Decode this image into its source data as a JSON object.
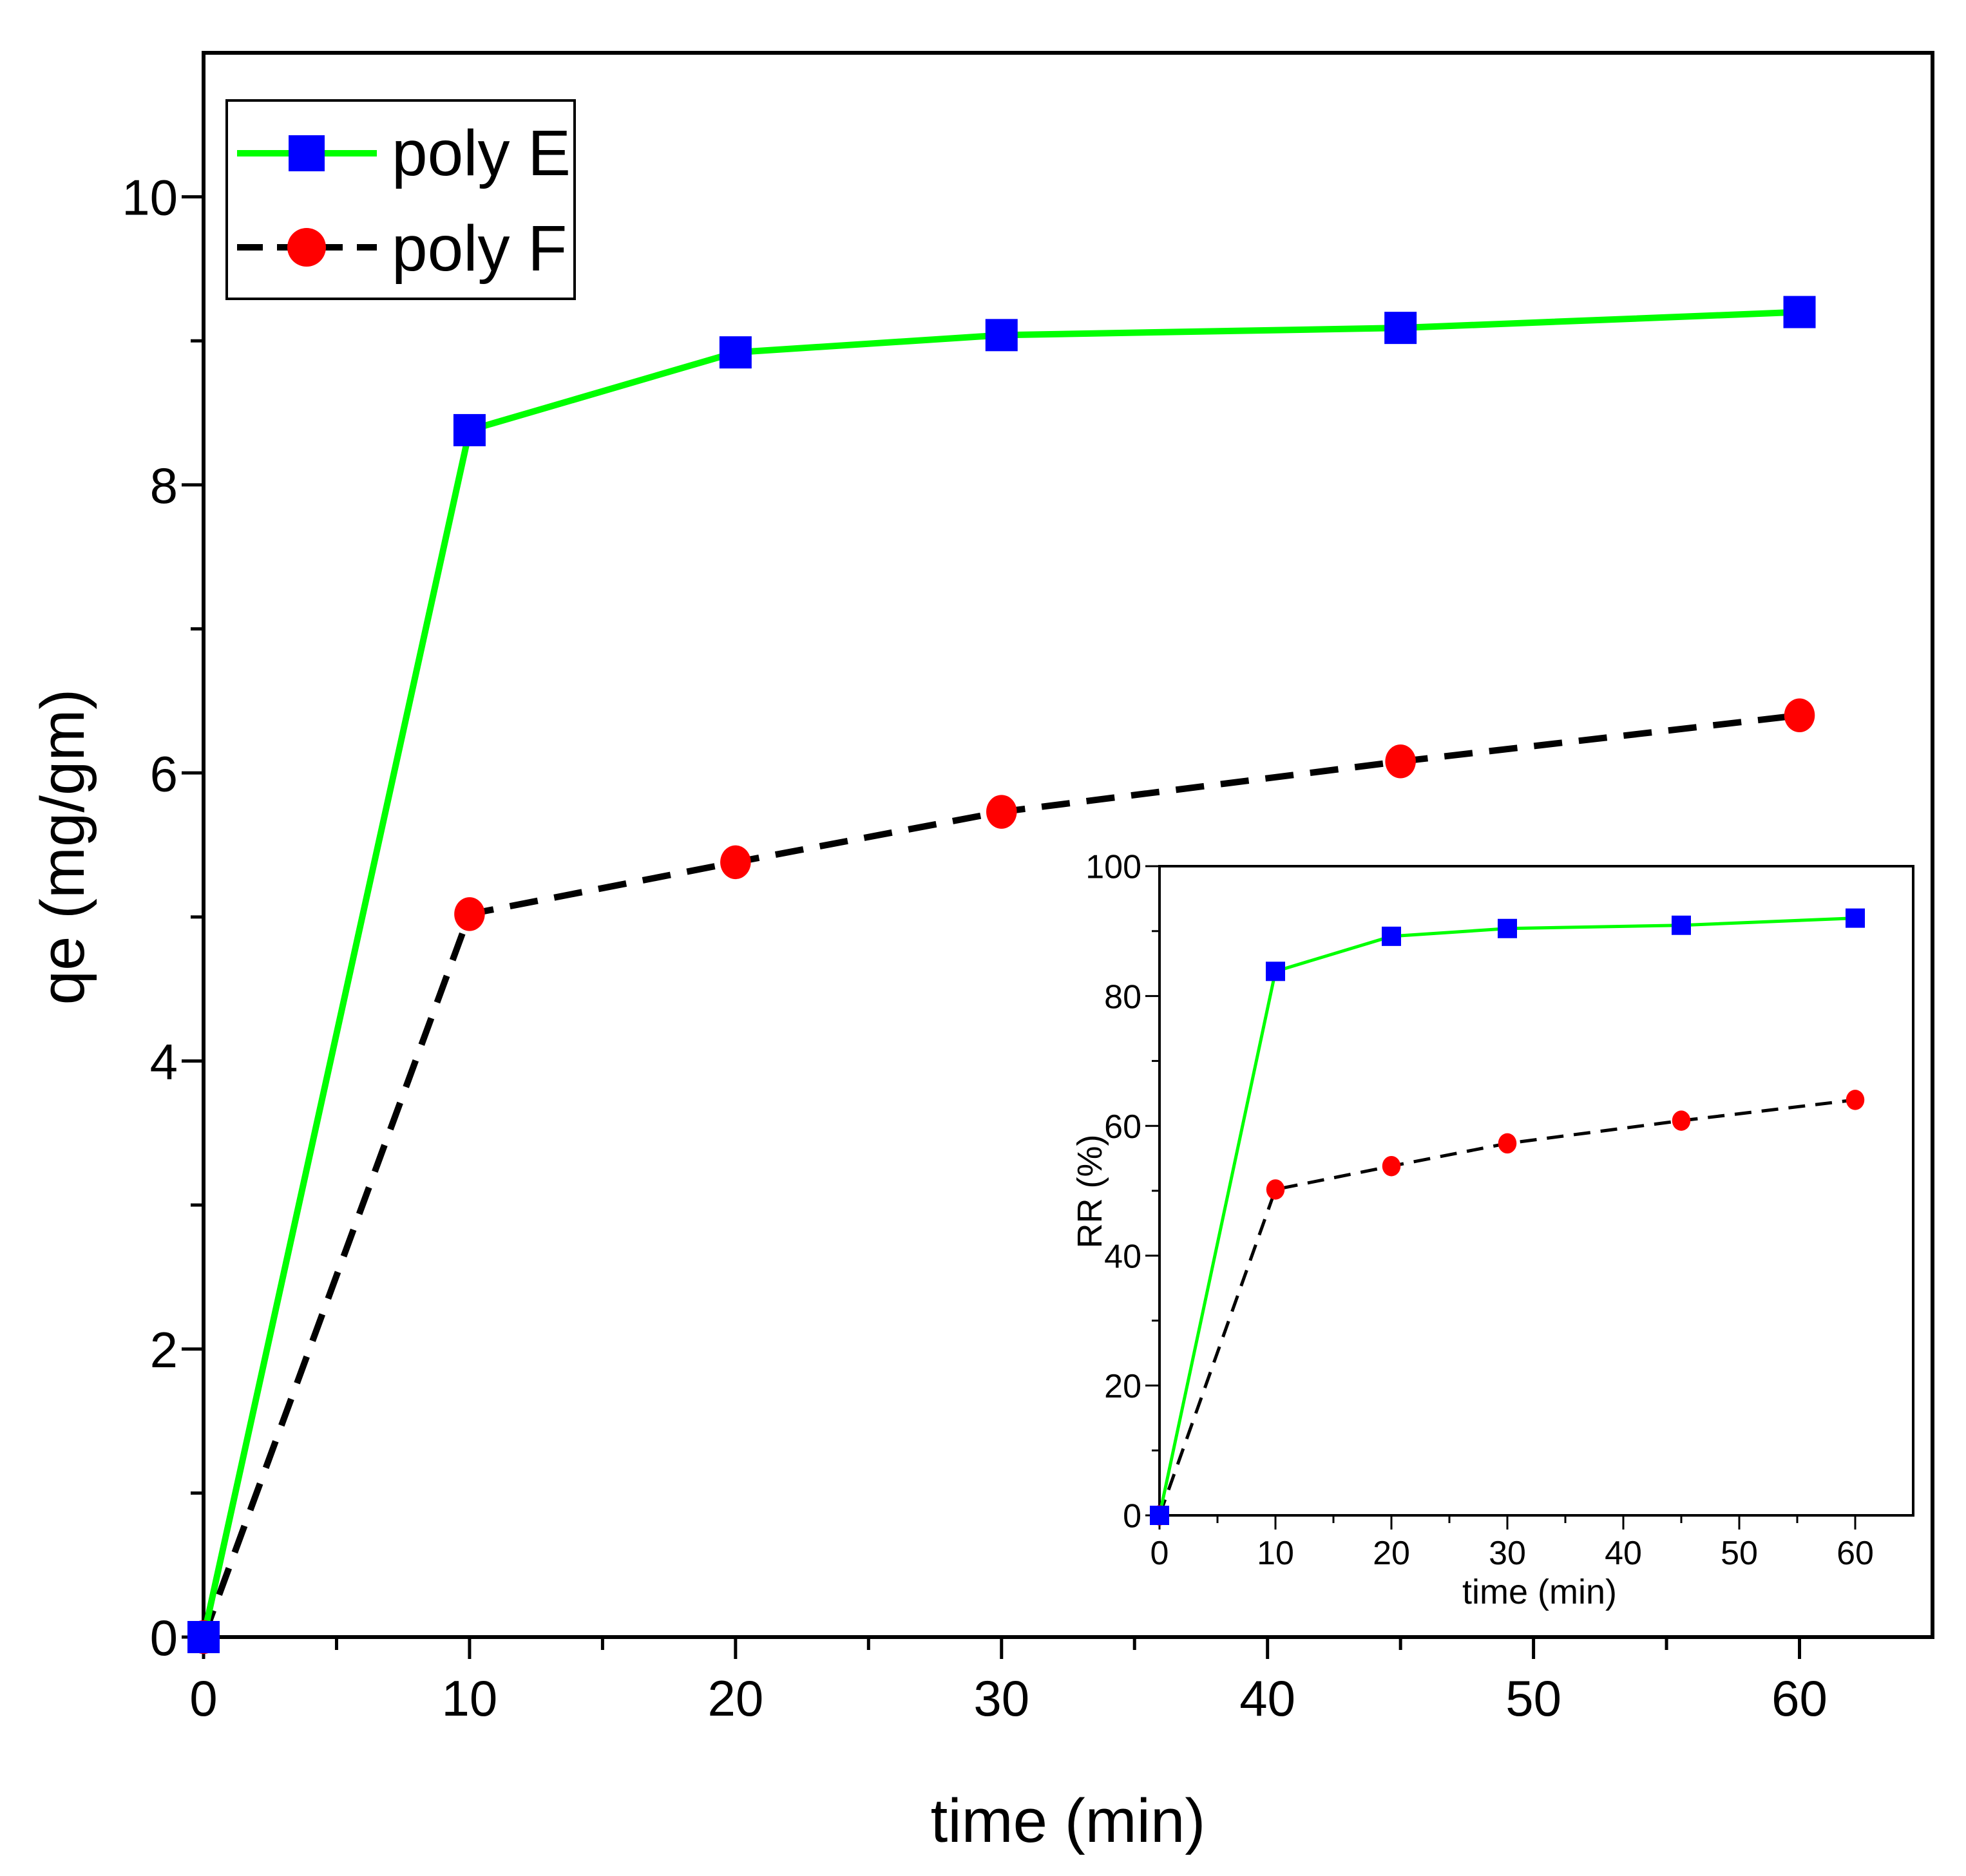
{
  "colors": {
    "series_e_line": "#00ff00",
    "series_e_marker": "#0000ff",
    "series_f_line": "#000000",
    "series_f_marker": "#ff0000",
    "axis": "#000000",
    "background": "#ffffff"
  },
  "chart_data": [
    {
      "type": "line",
      "title": "",
      "xlabel": "time (min)",
      "ylabel": "qe  (mg/gm)",
      "xlim": [
        0,
        65
      ],
      "ylim": [
        0,
        11
      ],
      "xticks": [
        0,
        10,
        20,
        30,
        40,
        50,
        60
      ],
      "xtick_labels": [
        "0",
        "10",
        "20",
        "30",
        "40",
        "50",
        "60"
      ],
      "yticks": [
        0,
        2,
        4,
        6,
        8,
        10
      ],
      "ytick_labels": [
        "0",
        "2",
        "4",
        "6",
        "8",
        "10"
      ],
      "grid": false,
      "legend_position": "top-left",
      "x": [
        0,
        10,
        20,
        30,
        45,
        60
      ],
      "series": [
        {
          "name": "poly E",
          "marker": "square",
          "line_style": "solid",
          "values": [
            0,
            8.38,
            8.92,
            9.04,
            9.09,
            9.2
          ]
        },
        {
          "name": "poly F",
          "marker": "circle",
          "line_style": "dashed",
          "values": [
            0,
            5.02,
            5.38,
            5.73,
            6.08,
            6.4
          ]
        }
      ]
    },
    {
      "type": "line",
      "title": "",
      "xlabel": "time (min)",
      "ylabel": "RR (%)",
      "xlim": [
        0,
        65
      ],
      "ylim": [
        0,
        100
      ],
      "xticks": [
        0,
        10,
        20,
        30,
        40,
        50,
        60
      ],
      "xtick_labels": [
        "0",
        "10",
        "20",
        "30",
        "40",
        "50",
        "60"
      ],
      "yticks": [
        0,
        20,
        40,
        60,
        80,
        100
      ],
      "ytick_labels": [
        "0",
        "20",
        "40",
        "60",
        "80",
        "100"
      ],
      "grid": false,
      "legend_position": "none",
      "x": [
        0,
        10,
        20,
        30,
        45,
        60
      ],
      "series": [
        {
          "name": "poly E",
          "marker": "square",
          "line_style": "solid",
          "values": [
            0,
            83.8,
            89.2,
            90.4,
            90.9,
            92.0
          ]
        },
        {
          "name": "poly F",
          "marker": "circle",
          "line_style": "dashed",
          "values": [
            0,
            50.2,
            53.8,
            57.3,
            60.8,
            64.0
          ]
        }
      ]
    }
  ]
}
